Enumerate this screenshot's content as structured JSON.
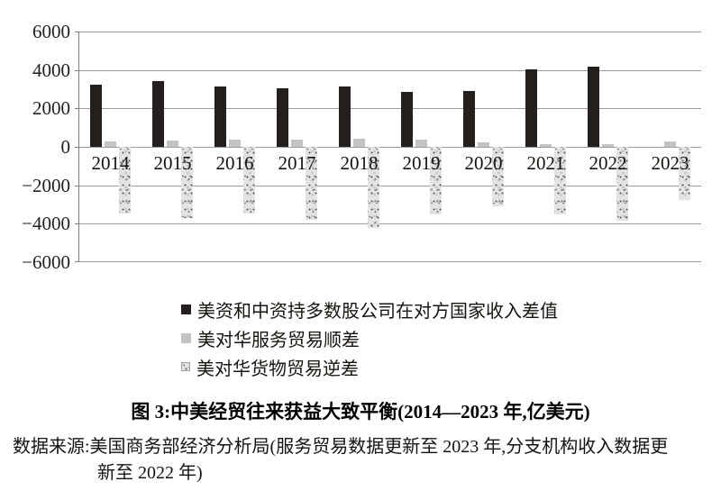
{
  "title": "图 3:中美经贸往来获益大致平衡(2014—2023 年,亿美元)",
  "source": {
    "line1": "数据来源:美国商务部经济分析局(服务贸易数据更新至 2023 年,分支机构收入数据更",
    "line2": "新至 2022 年)"
  },
  "colors": {
    "series_dark": "#241f1c",
    "series_gray": "#c3c3c3",
    "series_speckle_base": "#e3e3e3",
    "gridline": "#9c9c9c"
  },
  "chart_data": {
    "type": "bar",
    "categories": [
      "2014",
      "2015",
      "2016",
      "2017",
      "2018",
      "2019",
      "2020",
      "2021",
      "2022",
      "2023"
    ],
    "series": [
      {
        "key": "income-difference",
        "name": "美资和中资持多数股公司在对方国家收入差值",
        "style": "solid_dark",
        "values": [
          3250,
          3400,
          3150,
          3050,
          3150,
          2850,
          2900,
          4050,
          4150,
          null
        ]
      },
      {
        "key": "services-surplus",
        "name": "美对华服务贸易顺差",
        "style": "solid_gray",
        "values": [
          300,
          330,
          370,
          380,
          400,
          370,
          230,
          150,
          120,
          280
        ]
      },
      {
        "key": "goods-deficit",
        "name": "美对华货物贸易逆差",
        "style": "speckled",
        "values": [
          -3450,
          -3700,
          -3470,
          -3780,
          -4200,
          -3500,
          -3100,
          -3500,
          -3850,
          -2780
        ]
      }
    ],
    "ylim": [
      -6000,
      6000
    ],
    "ytick_step": 2000,
    "yticklabels": [
      "6000",
      "4000",
      "2000",
      "0",
      "−2000",
      "−4000",
      "−6000"
    ],
    "xlabel": "",
    "ylabel": "",
    "grid": true,
    "legend_position": "bottom-left",
    "unit": "亿美元"
  }
}
